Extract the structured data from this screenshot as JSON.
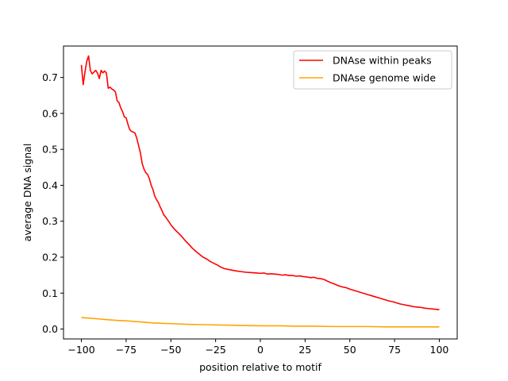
{
  "chart_data": {
    "type": "line",
    "title": "",
    "xlabel": "position relative to motif",
    "ylabel": "average DNA signal",
    "xlim": [
      -110,
      110
    ],
    "ylim": [
      -0.0275,
      0.7875
    ],
    "xticks": [
      -100,
      -75,
      -50,
      -25,
      0,
      25,
      50,
      75,
      100
    ],
    "xtick_labels": [
      "−100",
      "−75",
      "−50",
      "−25",
      "0",
      "25",
      "50",
      "75",
      "100"
    ],
    "yticks": [
      0.0,
      0.1,
      0.2,
      0.3,
      0.4,
      0.5,
      0.6,
      0.7
    ],
    "ytick_labels": [
      "0.0",
      "0.1",
      "0.2",
      "0.3",
      "0.4",
      "0.5",
      "0.6",
      "0.7"
    ],
    "grid": false,
    "legend_position": "top-right",
    "series": [
      {
        "name": "DNAse within peaks",
        "color": "#ff0000",
        "x": [
          -100,
          -99,
          -98,
          -97,
          -96,
          -95,
          -94,
          -93,
          -92,
          -91,
          -90,
          -89,
          -88,
          -87,
          -86,
          -85,
          -84,
          -83,
          -82,
          -81,
          -80,
          -79,
          -78,
          -77,
          -76,
          -75,
          -74,
          -73,
          -72,
          -71,
          -70,
          -69,
          -68,
          -67,
          -66,
          -65,
          -64,
          -63,
          -62,
          -61,
          -60,
          -59,
          -58,
          -57,
          -56,
          -55,
          -54,
          -53,
          -52,
          -51,
          -50,
          -48,
          -46,
          -44,
          -42,
          -40,
          -38,
          -36,
          -34,
          -32,
          -30,
          -28,
          -26,
          -24,
          -22,
          -20,
          -17,
          -14,
          -11,
          -8,
          -5,
          -2,
          0,
          2,
          4,
          6,
          8,
          10,
          12,
          14,
          16,
          18,
          20,
          22,
          24,
          26,
          28,
          30,
          32,
          34,
          36,
          38,
          40,
          42,
          44,
          46,
          48,
          50,
          52,
          54,
          56,
          58,
          60,
          62,
          64,
          66,
          68,
          70,
          72,
          74,
          76,
          78,
          80,
          82,
          84,
          86,
          88,
          90,
          92,
          94,
          96,
          98,
          100
        ],
        "values": [
          0.735,
          0.68,
          0.715,
          0.745,
          0.76,
          0.72,
          0.71,
          0.715,
          0.72,
          0.712,
          0.697,
          0.72,
          0.713,
          0.718,
          0.712,
          0.67,
          0.673,
          0.668,
          0.665,
          0.66,
          0.635,
          0.63,
          0.615,
          0.605,
          0.59,
          0.588,
          0.57,
          0.555,
          0.55,
          0.548,
          0.545,
          0.53,
          0.51,
          0.49,
          0.46,
          0.445,
          0.435,
          0.43,
          0.418,
          0.4,
          0.388,
          0.37,
          0.36,
          0.352,
          0.34,
          0.33,
          0.318,
          0.312,
          0.305,
          0.298,
          0.29,
          0.278,
          0.268,
          0.258,
          0.246,
          0.236,
          0.225,
          0.216,
          0.208,
          0.2,
          0.195,
          0.188,
          0.183,
          0.178,
          0.172,
          0.168,
          0.165,
          0.162,
          0.16,
          0.158,
          0.157,
          0.156,
          0.155,
          0.156,
          0.153,
          0.154,
          0.153,
          0.152,
          0.15,
          0.151,
          0.149,
          0.149,
          0.147,
          0.148,
          0.146,
          0.145,
          0.143,
          0.144,
          0.141,
          0.14,
          0.137,
          0.132,
          0.128,
          0.124,
          0.12,
          0.117,
          0.115,
          0.111,
          0.108,
          0.105,
          0.102,
          0.099,
          0.096,
          0.093,
          0.09,
          0.087,
          0.084,
          0.081,
          0.078,
          0.076,
          0.073,
          0.07,
          0.068,
          0.066,
          0.064,
          0.062,
          0.061,
          0.06,
          0.058,
          0.057,
          0.056,
          0.055,
          0.054
        ]
      },
      {
        "name": "DNAse genome wide",
        "color": "#ffa500",
        "x": [
          -100,
          -95,
          -90,
          -85,
          -80,
          -75,
          -70,
          -65,
          -60,
          -55,
          -50,
          -40,
          -30,
          -20,
          -10,
          0,
          10,
          20,
          30,
          40,
          50,
          60,
          70,
          80,
          90,
          100
        ],
        "values": [
          0.032,
          0.03,
          0.028,
          0.026,
          0.024,
          0.023,
          0.021,
          0.019,
          0.017,
          0.016,
          0.015,
          0.013,
          0.012,
          0.011,
          0.01,
          0.009,
          0.009,
          0.008,
          0.008,
          0.007,
          0.007,
          0.007,
          0.006,
          0.006,
          0.006,
          0.006
        ]
      }
    ]
  }
}
